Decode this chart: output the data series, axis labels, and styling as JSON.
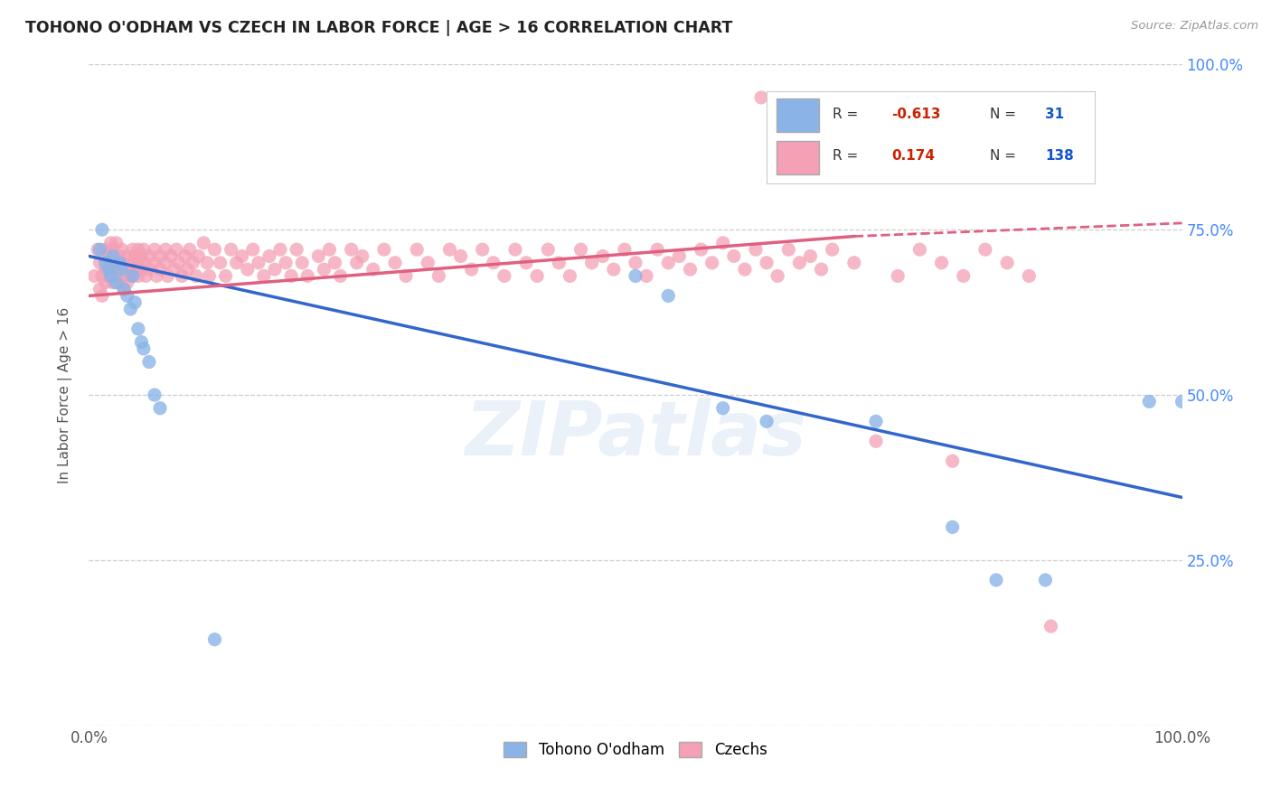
{
  "title": "TOHONO O'ODHAM VS CZECH IN LABOR FORCE | AGE > 16 CORRELATION CHART",
  "source": "Source: ZipAtlas.com",
  "ylabel": "In Labor Force | Age > 16",
  "watermark": "ZIPatlas",
  "blue_R": -0.613,
  "blue_N": 31,
  "pink_R": 0.174,
  "pink_N": 138,
  "blue_color": "#8ab4e8",
  "pink_color": "#f4a0b5",
  "blue_line_color": "#3366cc",
  "pink_line_color": "#e06080",
  "blue_scatter": [
    [
      0.01,
      0.72
    ],
    [
      0.012,
      0.75
    ],
    [
      0.015,
      0.7
    ],
    [
      0.018,
      0.69
    ],
    [
      0.02,
      0.68
    ],
    [
      0.022,
      0.71
    ],
    [
      0.025,
      0.67
    ],
    [
      0.028,
      0.7
    ],
    [
      0.03,
      0.69
    ],
    [
      0.032,
      0.66
    ],
    [
      0.035,
      0.65
    ],
    [
      0.038,
      0.63
    ],
    [
      0.04,
      0.68
    ],
    [
      0.042,
      0.64
    ],
    [
      0.045,
      0.6
    ],
    [
      0.048,
      0.58
    ],
    [
      0.05,
      0.57
    ],
    [
      0.055,
      0.55
    ],
    [
      0.06,
      0.5
    ],
    [
      0.065,
      0.48
    ],
    [
      0.115,
      0.13
    ],
    [
      0.5,
      0.68
    ],
    [
      0.53,
      0.65
    ],
    [
      0.58,
      0.48
    ],
    [
      0.62,
      0.46
    ],
    [
      0.72,
      0.46
    ],
    [
      0.79,
      0.3
    ],
    [
      0.83,
      0.22
    ],
    [
      0.875,
      0.22
    ],
    [
      0.97,
      0.49
    ],
    [
      1.0,
      0.49
    ]
  ],
  "pink_scatter": [
    [
      0.005,
      0.68
    ],
    [
      0.008,
      0.72
    ],
    [
      0.01,
      0.7
    ],
    [
      0.01,
      0.66
    ],
    [
      0.012,
      0.68
    ],
    [
      0.012,
      0.65
    ],
    [
      0.015,
      0.72
    ],
    [
      0.015,
      0.69
    ],
    [
      0.015,
      0.67
    ],
    [
      0.018,
      0.71
    ],
    [
      0.018,
      0.68
    ],
    [
      0.02,
      0.73
    ],
    [
      0.02,
      0.7
    ],
    [
      0.02,
      0.68
    ],
    [
      0.022,
      0.72
    ],
    [
      0.022,
      0.69
    ],
    [
      0.022,
      0.67
    ],
    [
      0.025,
      0.73
    ],
    [
      0.025,
      0.7
    ],
    [
      0.025,
      0.68
    ],
    [
      0.028,
      0.71
    ],
    [
      0.028,
      0.69
    ],
    [
      0.028,
      0.67
    ],
    [
      0.03,
      0.72
    ],
    [
      0.03,
      0.7
    ],
    [
      0.032,
      0.68
    ],
    [
      0.032,
      0.66
    ],
    [
      0.035,
      0.71
    ],
    [
      0.035,
      0.69
    ],
    [
      0.035,
      0.67
    ],
    [
      0.038,
      0.7
    ],
    [
      0.038,
      0.68
    ],
    [
      0.04,
      0.72
    ],
    [
      0.04,
      0.7
    ],
    [
      0.04,
      0.68
    ],
    [
      0.042,
      0.71
    ],
    [
      0.042,
      0.69
    ],
    [
      0.045,
      0.72
    ],
    [
      0.045,
      0.7
    ],
    [
      0.045,
      0.68
    ],
    [
      0.048,
      0.71
    ],
    [
      0.048,
      0.69
    ],
    [
      0.05,
      0.72
    ],
    [
      0.05,
      0.7
    ],
    [
      0.052,
      0.68
    ],
    [
      0.055,
      0.71
    ],
    [
      0.055,
      0.69
    ],
    [
      0.06,
      0.72
    ],
    [
      0.06,
      0.7
    ],
    [
      0.062,
      0.68
    ],
    [
      0.065,
      0.71
    ],
    [
      0.065,
      0.69
    ],
    [
      0.07,
      0.72
    ],
    [
      0.07,
      0.7
    ],
    [
      0.072,
      0.68
    ],
    [
      0.075,
      0.71
    ],
    [
      0.078,
      0.69
    ],
    [
      0.08,
      0.72
    ],
    [
      0.082,
      0.7
    ],
    [
      0.085,
      0.68
    ],
    [
      0.088,
      0.71
    ],
    [
      0.09,
      0.69
    ],
    [
      0.092,
      0.72
    ],
    [
      0.095,
      0.7
    ],
    [
      0.098,
      0.68
    ],
    [
      0.1,
      0.71
    ],
    [
      0.105,
      0.73
    ],
    [
      0.108,
      0.7
    ],
    [
      0.11,
      0.68
    ],
    [
      0.115,
      0.72
    ],
    [
      0.12,
      0.7
    ],
    [
      0.125,
      0.68
    ],
    [
      0.13,
      0.72
    ],
    [
      0.135,
      0.7
    ],
    [
      0.14,
      0.71
    ],
    [
      0.145,
      0.69
    ],
    [
      0.15,
      0.72
    ],
    [
      0.155,
      0.7
    ],
    [
      0.16,
      0.68
    ],
    [
      0.165,
      0.71
    ],
    [
      0.17,
      0.69
    ],
    [
      0.175,
      0.72
    ],
    [
      0.18,
      0.7
    ],
    [
      0.185,
      0.68
    ],
    [
      0.19,
      0.72
    ],
    [
      0.195,
      0.7
    ],
    [
      0.2,
      0.68
    ],
    [
      0.21,
      0.71
    ],
    [
      0.215,
      0.69
    ],
    [
      0.22,
      0.72
    ],
    [
      0.225,
      0.7
    ],
    [
      0.23,
      0.68
    ],
    [
      0.24,
      0.72
    ],
    [
      0.245,
      0.7
    ],
    [
      0.25,
      0.71
    ],
    [
      0.26,
      0.69
    ],
    [
      0.27,
      0.72
    ],
    [
      0.28,
      0.7
    ],
    [
      0.29,
      0.68
    ],
    [
      0.3,
      0.72
    ],
    [
      0.31,
      0.7
    ],
    [
      0.32,
      0.68
    ],
    [
      0.33,
      0.72
    ],
    [
      0.34,
      0.71
    ],
    [
      0.35,
      0.69
    ],
    [
      0.36,
      0.72
    ],
    [
      0.37,
      0.7
    ],
    [
      0.38,
      0.68
    ],
    [
      0.39,
      0.72
    ],
    [
      0.4,
      0.7
    ],
    [
      0.41,
      0.68
    ],
    [
      0.42,
      0.72
    ],
    [
      0.43,
      0.7
    ],
    [
      0.44,
      0.68
    ],
    [
      0.45,
      0.72
    ],
    [
      0.46,
      0.7
    ],
    [
      0.47,
      0.71
    ],
    [
      0.48,
      0.69
    ],
    [
      0.49,
      0.72
    ],
    [
      0.5,
      0.7
    ],
    [
      0.51,
      0.68
    ],
    [
      0.52,
      0.72
    ],
    [
      0.53,
      0.7
    ],
    [
      0.54,
      0.71
    ],
    [
      0.55,
      0.69
    ],
    [
      0.56,
      0.72
    ],
    [
      0.57,
      0.7
    ],
    [
      0.58,
      0.73
    ],
    [
      0.59,
      0.71
    ],
    [
      0.6,
      0.69
    ],
    [
      0.61,
      0.72
    ],
    [
      0.615,
      0.95
    ],
    [
      0.62,
      0.7
    ],
    [
      0.63,
      0.68
    ],
    [
      0.64,
      0.72
    ],
    [
      0.65,
      0.7
    ],
    [
      0.66,
      0.71
    ],
    [
      0.67,
      0.69
    ],
    [
      0.68,
      0.72
    ],
    [
      0.7,
      0.7
    ],
    [
      0.72,
      0.43
    ],
    [
      0.74,
      0.68
    ],
    [
      0.76,
      0.72
    ],
    [
      0.78,
      0.7
    ],
    [
      0.79,
      0.4
    ],
    [
      0.8,
      0.68
    ],
    [
      0.82,
      0.72
    ],
    [
      0.84,
      0.7
    ],
    [
      0.86,
      0.68
    ],
    [
      0.88,
      0.15
    ]
  ],
  "blue_trendline": [
    [
      0.0,
      0.71
    ],
    [
      1.0,
      0.345
    ]
  ],
  "pink_trendline": [
    [
      0.0,
      0.65
    ],
    [
      0.7,
      0.74
    ]
  ],
  "pink_trendline_dash": [
    [
      0.7,
      0.74
    ],
    [
      1.0,
      0.76
    ]
  ],
  "xlim": [
    0.0,
    1.0
  ],
  "ylim": [
    0.0,
    1.0
  ]
}
